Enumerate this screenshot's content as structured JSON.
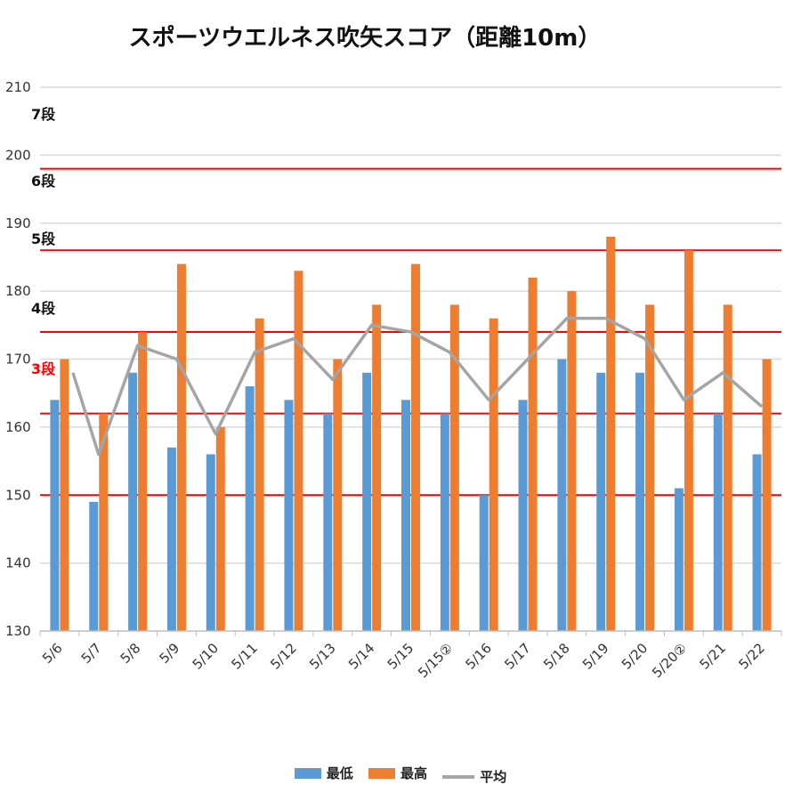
{
  "chart_data": {
    "type": "bar",
    "title": "スポーツウエルネス吹矢スコア（距離10m）",
    "categories": [
      "5/6",
      "5/7",
      "5/8",
      "5/9",
      "5/10",
      "5/11",
      "5/12",
      "5/13",
      "5/14",
      "5/15",
      "5/15②",
      "5/16",
      "5/17",
      "5/18",
      "5/19",
      "5/20",
      "5/20②",
      "5/21",
      "5/22"
    ],
    "series": [
      {
        "name": "最低",
        "type": "bar",
        "color": "#5B9BD5",
        "values": [
          164,
          149,
          168,
          157,
          156,
          166,
          164,
          162,
          168,
          164,
          162,
          150,
          164,
          170,
          168,
          168,
          151,
          162,
          156
        ]
      },
      {
        "name": "最高",
        "type": "bar",
        "color": "#ED7D31",
        "values": [
          170,
          162,
          174,
          184,
          160,
          176,
          183,
          170,
          178,
          184,
          178,
          176,
          182,
          180,
          188,
          178,
          186,
          178,
          170
        ]
      },
      {
        "name": "平均",
        "type": "line",
        "color": "#A5A5A5",
        "values": [
          168,
          156,
          172,
          170,
          159,
          171,
          173,
          167,
          175,
          174,
          171,
          164,
          170,
          176,
          176,
          173,
          164,
          168,
          163
        ]
      }
    ],
    "ylim": [
      130,
      210
    ],
    "yticks": [
      130,
      140,
      150,
      160,
      170,
      180,
      190,
      200,
      210
    ],
    "grid": true,
    "legend": "bottom",
    "reference_lines": [
      {
        "label": "7段",
        "color": "#111111"
      },
      {
        "label": "6段",
        "value": 198,
        "color": "#111111"
      },
      {
        "label": "5段",
        "value": 186,
        "color": "#111111"
      },
      {
        "label": "4段",
        "value": 174,
        "color": "#111111"
      },
      {
        "label": "3段",
        "value": 162,
        "color": "#FF0000"
      },
      {
        "value": 150
      }
    ],
    "reference_line_color": "#FF0000"
  }
}
